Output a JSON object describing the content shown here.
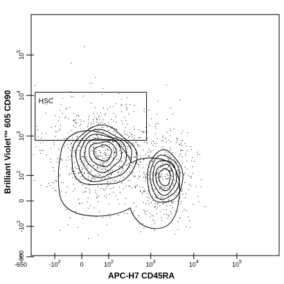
{
  "chart_data": {
    "type": "contour",
    "scale": "biexponential",
    "xlabel": "APC-H7 CD45RA",
    "ylabel": "Brilliant Violet™ 605 CD90",
    "xlim": [
      -650,
      150000
    ],
    "ylim": [
      -600,
      420000
    ],
    "x_ticks": [
      {
        "label": "-650",
        "value": -650
      },
      {
        "label": "-10",
        "sup": "2",
        "value": -100
      },
      {
        "label": "0",
        "sup": "",
        "value": 0
      },
      {
        "label": "10",
        "sup": "2",
        "value": 100
      },
      {
        "label": "10",
        "sup": "3",
        "value": 1000
      },
      {
        "label": "10",
        "sup": "4",
        "value": 10000
      },
      {
        "label": "10",
        "sup": "5",
        "value": 100000
      }
    ],
    "y_ticks": [
      {
        "label": "-600",
        "value": -600
      },
      {
        "label": "-10",
        "sup": "2",
        "value": -100
      },
      {
        "label": "0",
        "sup": "",
        "value": 0
      },
      {
        "label": "10",
        "sup": "2",
        "value": 100
      },
      {
        "label": "10",
        "sup": "3",
        "value": 1000
      },
      {
        "label": "10",
        "sup": "4",
        "value": 10000
      },
      {
        "label": "10",
        "sup": "5",
        "value": 100000
      }
    ],
    "gates": [
      {
        "name": "HSC",
        "x_range": [
          -300,
          800
        ],
        "y_range": [
          780,
          12000
        ]
      }
    ],
    "populations": [
      {
        "center": [
          60,
          400
        ],
        "levels": 7
      },
      {
        "center": [
          2100,
          90
        ],
        "levels": 6
      }
    ],
    "colors": {
      "contour": "#000000",
      "dots": "#000000",
      "gate": "#000000"
    }
  }
}
